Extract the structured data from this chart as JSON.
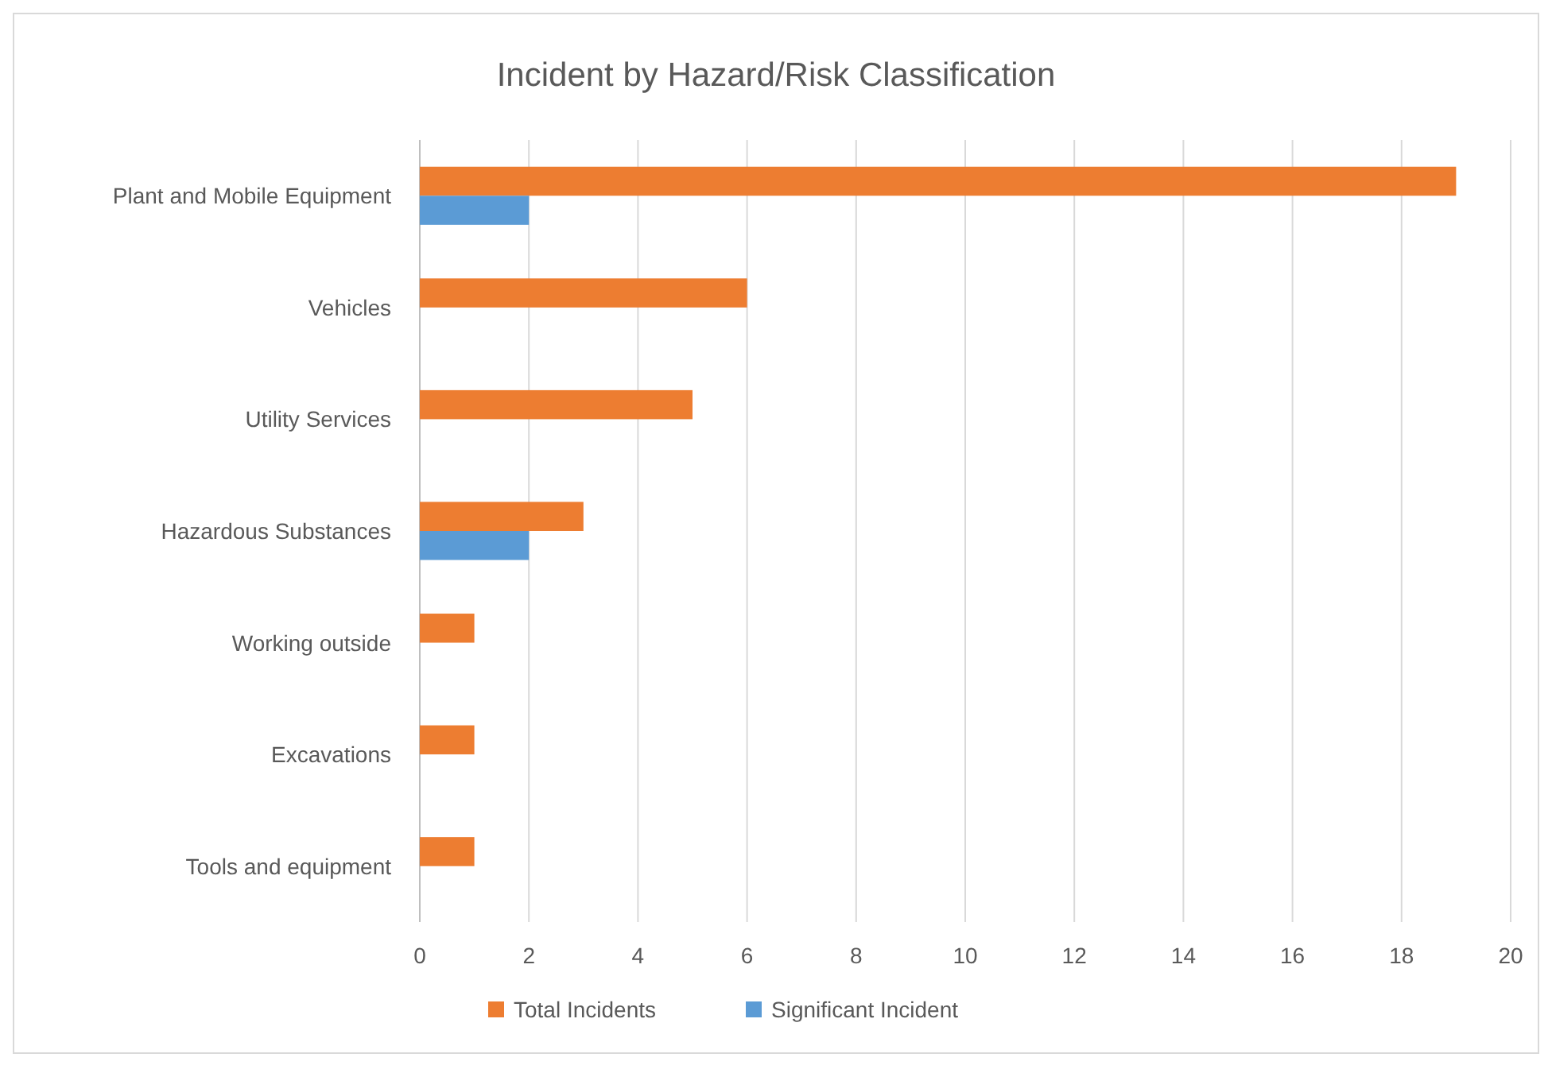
{
  "chart_data": {
    "type": "bar",
    "title": "Incident by Hazard/Risk Classification",
    "orientation": "horizontal",
    "categories": [
      "Plant and Mobile Equipment",
      "Vehicles",
      "Utility Services",
      "Hazardous Substances",
      "Working outside",
      "Excavations",
      "Tools and equipment"
    ],
    "series": [
      {
        "name": "Total Incidents",
        "color": "#ed7d31",
        "values": [
          19,
          6,
          5,
          3,
          1,
          1,
          1
        ]
      },
      {
        "name": "Significant Incident",
        "color": "#5b9bd5",
        "values": [
          2,
          null,
          null,
          2,
          null,
          null,
          null
        ]
      }
    ],
    "xlim": [
      0,
      20
    ],
    "xticks": [
      0,
      2,
      4,
      6,
      8,
      10,
      12,
      14,
      16,
      18,
      20
    ],
    "grid": "x",
    "legend": "bottom"
  }
}
